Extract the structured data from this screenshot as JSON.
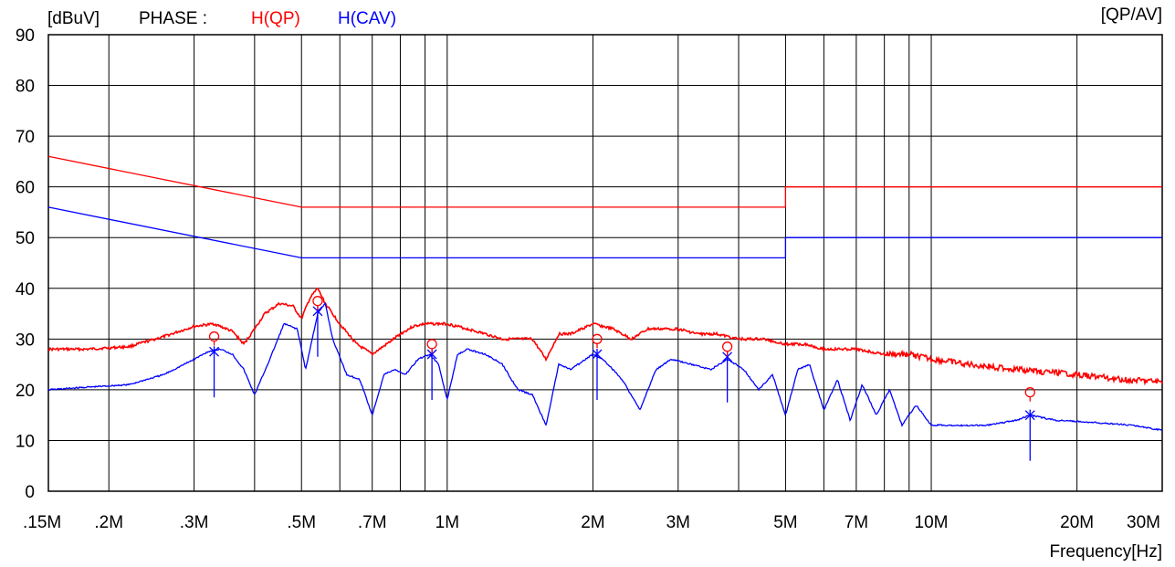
{
  "header": {
    "unit_label": "[dBuV]",
    "phase_label": "PHASE :",
    "series_qp_label": "H(QP)",
    "series_cav_label": "H(CAV)",
    "detector_label": "[QP/AV]"
  },
  "chart_data": {
    "type": "line",
    "xlabel": "Frequency[Hz]",
    "ylabel": "[dBuV]",
    "x_scale": "log",
    "xlim_hz": [
      150000,
      30000000
    ],
    "ylim": [
      0,
      90
    ],
    "y_ticks": [
      0,
      10,
      20,
      30,
      40,
      50,
      60,
      70,
      80,
      90
    ],
    "x_tick_labels": [
      {
        "hz": 150000,
        "label": ".15M"
      },
      {
        "hz": 200000,
        "label": ".2M"
      },
      {
        "hz": 300000,
        "label": ".3M"
      },
      {
        "hz": 500000,
        "label": ".5M"
      },
      {
        "hz": 700000,
        "label": ".7M"
      },
      {
        "hz": 1000000,
        "label": "1M"
      },
      {
        "hz": 2000000,
        "label": "2M"
      },
      {
        "hz": 3000000,
        "label": "3M"
      },
      {
        "hz": 5000000,
        "label": "5M"
      },
      {
        "hz": 7000000,
        "label": "7M"
      },
      {
        "hz": 10000000,
        "label": "10M"
      },
      {
        "hz": 20000000,
        "label": "20M"
      },
      {
        "hz": 30000000,
        "label": "30M"
      }
    ],
    "x_grid_hz": [
      200000,
      300000,
      400000,
      500000,
      600000,
      700000,
      800000,
      900000,
      1000000,
      2000000,
      3000000,
      4000000,
      5000000,
      6000000,
      7000000,
      8000000,
      9000000,
      10000000,
      20000000
    ],
    "grid": true,
    "colors": {
      "qp": "#ff0000",
      "cav": "#0000ff",
      "grid": "#000000"
    },
    "limit_lines": [
      {
        "color": "#ff0000",
        "points": [
          [
            150000,
            66
          ],
          [
            500000,
            56
          ],
          [
            5000000,
            56
          ],
          [
            5000000,
            60
          ],
          [
            30000000,
            60
          ]
        ]
      },
      {
        "color": "#0000ff",
        "points": [
          [
            150000,
            56
          ],
          [
            500000,
            46
          ],
          [
            5000000,
            46
          ],
          [
            5000000,
            50
          ],
          [
            30000000,
            50
          ]
        ]
      }
    ],
    "series": [
      {
        "name": "H(QP)",
        "color": "#ff0000",
        "x_hz": [
          150000,
          180000,
          220000,
          260000,
          300000,
          330000,
          360000,
          380000,
          400000,
          420000,
          450000,
          480000,
          500000,
          520000,
          540000,
          560000,
          600000,
          650000,
          700000,
          750000,
          800000,
          850000,
          900000,
          950000,
          1000000,
          1100000,
          1200000,
          1300000,
          1400000,
          1500000,
          1600000,
          1700000,
          1800000,
          2000000,
          2200000,
          2400000,
          2600000,
          2800000,
          3000000,
          3300000,
          3600000,
          4000000,
          4500000,
          5000000,
          5500000,
          6000000,
          6500000,
          7000000,
          8000000,
          9000000,
          10000000,
          12000000,
          15000000,
          20000000,
          25000000,
          30000000
        ],
        "values": [
          28,
          28,
          28.5,
          30.5,
          32.5,
          33,
          31.5,
          29,
          32,
          35,
          37,
          36.5,
          34,
          38,
          40,
          37,
          33,
          29,
          27,
          29,
          31,
          32.5,
          33,
          33,
          33,
          32,
          31,
          30,
          30,
          30,
          26,
          31,
          31,
          33,
          32,
          30,
          32,
          32,
          32,
          31,
          31,
          30,
          30,
          29,
          29,
          28,
          28,
          28,
          27,
          27,
          26,
          25,
          24,
          23,
          22,
          21.5
        ]
      },
      {
        "name": "H(CAV)",
        "color": "#0000ff",
        "x_hz": [
          150000,
          180000,
          220000,
          260000,
          300000,
          320000,
          340000,
          360000,
          380000,
          400000,
          430000,
          460000,
          490000,
          510000,
          540000,
          560000,
          580000,
          620000,
          660000,
          700000,
          740000,
          780000,
          820000,
          870000,
          920000,
          960000,
          1000000,
          1050000,
          1100000,
          1200000,
          1300000,
          1400000,
          1500000,
          1600000,
          1700000,
          1800000,
          2000000,
          2100000,
          2300000,
          2500000,
          2700000,
          2900000,
          3200000,
          3500000,
          3800000,
          4100000,
          4400000,
          4700000,
          5000000,
          5300000,
          5600000,
          6000000,
          6400000,
          6800000,
          7200000,
          7700000,
          8200000,
          8700000,
          9300000,
          10000000,
          11000000,
          13000000,
          15000000,
          16000000,
          18000000,
          22000000,
          26000000,
          30000000
        ],
        "values": [
          20,
          20.5,
          21,
          23,
          26,
          27.5,
          28,
          27,
          24,
          19,
          26,
          33,
          32,
          24,
          35,
          37,
          30,
          23,
          22,
          15,
          23,
          24,
          23,
          26,
          27,
          25,
          18,
          27,
          28,
          27,
          25,
          20,
          19,
          13,
          25,
          24,
          27,
          26,
          22,
          16,
          24,
          26,
          25,
          24,
          26,
          24,
          20,
          23,
          15,
          24,
          25,
          16,
          22,
          14,
          21,
          15,
          20,
          13,
          17,
          13,
          13,
          13,
          14,
          15,
          14,
          13.5,
          13,
          12
        ]
      }
    ],
    "peak_markers": [
      {
        "x_hz": 330000,
        "qp": 30.5,
        "cav": 27.5
      },
      {
        "x_hz": 540000,
        "qp": 37.5,
        "cav": 35.5
      },
      {
        "x_hz": 930000,
        "qp": 29,
        "cav": 27
      },
      {
        "x_hz": 2040000,
        "qp": 30,
        "cav": 27
      },
      {
        "x_hz": 3790000,
        "qp": 28.5,
        "cav": 26.5
      },
      {
        "x_hz": 16000000,
        "qp": 19.5,
        "cav": 15
      }
    ]
  }
}
